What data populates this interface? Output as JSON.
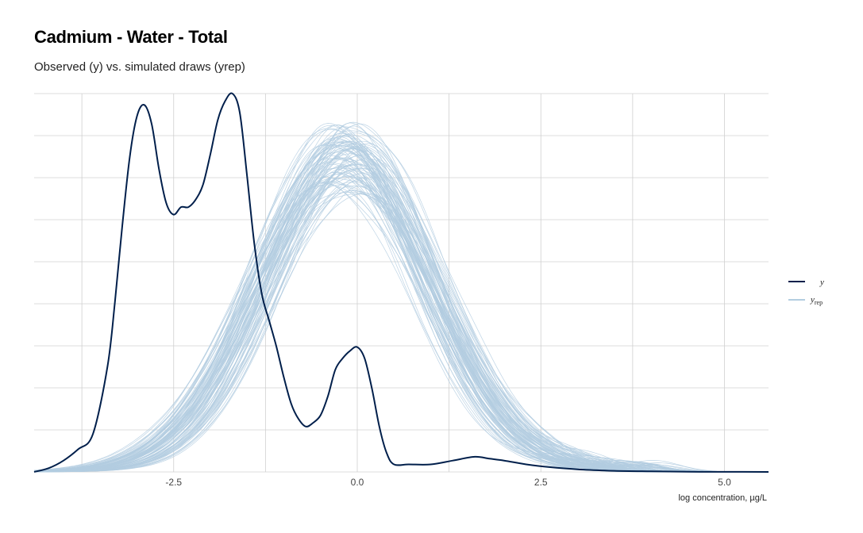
{
  "chart_data": {
    "type": "line",
    "title": "Cadmium - Water - Total",
    "subtitle": "Observed (y) vs. simulated draws (yrep)",
    "xlabel": "log concentration, µg/L",
    "ylabel": "",
    "xlim": [
      -4.4,
      5.6
    ],
    "ylim": [
      0,
      1
    ],
    "x_ticks": [
      -2.5,
      0.0,
      2.5,
      5.0
    ],
    "x_tick_labels": [
      "-2.5",
      "0.0",
      "2.5",
      "5.0"
    ],
    "y_ticks_hidden": true,
    "grid": true,
    "legend_position": "right",
    "colors": {
      "y": "#011f4b",
      "yrep": "#b3cde0",
      "grid": "#d0d0d0"
    },
    "series": [
      {
        "name": "y",
        "role": "observed",
        "x": [
          -4.4,
          -4.2,
          -4.0,
          -3.8,
          -3.6,
          -3.4,
          -3.3,
          -3.2,
          -3.1,
          -3.0,
          -2.9,
          -2.8,
          -2.7,
          -2.6,
          -2.5,
          -2.4,
          -2.3,
          -2.2,
          -2.1,
          -2.0,
          -1.9,
          -1.8,
          -1.7,
          -1.6,
          -1.5,
          -1.4,
          -1.3,
          -1.2,
          -1.1,
          -1.0,
          -0.9,
          -0.8,
          -0.7,
          -0.6,
          -0.5,
          -0.4,
          -0.3,
          -0.2,
          -0.1,
          0.0,
          0.1,
          0.2,
          0.3,
          0.4,
          0.5,
          0.7,
          1.0,
          1.3,
          1.6,
          1.8,
          2.0,
          2.3,
          2.6,
          3.0,
          3.5,
          4.0,
          4.5,
          5.0,
          5.6
        ],
        "y": [
          0.0,
          0.01,
          0.03,
          0.06,
          0.1,
          0.28,
          0.45,
          0.65,
          0.83,
          0.94,
          0.97,
          0.92,
          0.8,
          0.71,
          0.68,
          0.7,
          0.7,
          0.72,
          0.76,
          0.84,
          0.93,
          0.98,
          1.0,
          0.95,
          0.78,
          0.6,
          0.47,
          0.4,
          0.33,
          0.25,
          0.18,
          0.14,
          0.12,
          0.13,
          0.15,
          0.2,
          0.27,
          0.3,
          0.32,
          0.33,
          0.3,
          0.22,
          0.12,
          0.05,
          0.02,
          0.02,
          0.02,
          0.03,
          0.04,
          0.035,
          0.03,
          0.02,
          0.013,
          0.007,
          0.003,
          0.0015,
          0.0005,
          0.0002,
          0.0
        ]
      },
      {
        "name": "yrep",
        "role": "simulated",
        "draws": 100,
        "approx_mean": -0.2,
        "approx_sd": 1.15,
        "approx_peak_height": 0.86,
        "peak_range": [
          0.74,
          0.92
        ]
      }
    ]
  },
  "legend": {
    "y_label": "y",
    "yrep_label": "y",
    "yrep_subscript": "rep"
  }
}
